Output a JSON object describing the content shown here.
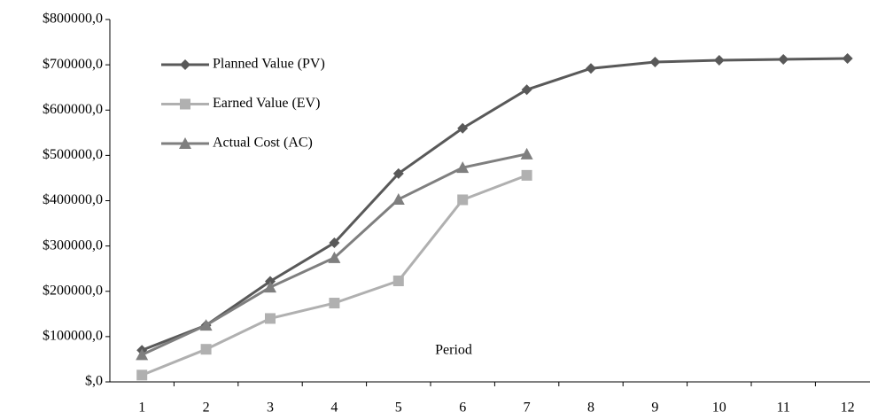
{
  "chart_data": {
    "type": "line",
    "categories": [
      "1",
      "2",
      "3",
      "4",
      "5",
      "6",
      "7",
      "8",
      "9",
      "10",
      "11",
      "12"
    ],
    "series": [
      {
        "name": "Planned Value (PV)",
        "color": "#595959",
        "marker": "diamond",
        "values": [
          70000,
          125000,
          222000,
          307000,
          460000,
          560000,
          645000,
          692000,
          706000,
          710000,
          712000,
          714000
        ]
      },
      {
        "name": "Earned Value (EV)",
        "color": "#b0b0b0",
        "marker": "square",
        "values": [
          15000,
          72000,
          140000,
          174000,
          223000,
          402000,
          456000,
          null,
          null,
          null,
          null,
          null
        ]
      },
      {
        "name": "Actual Cost (AC)",
        "color": "#7f7f7f",
        "marker": "triangle",
        "values": [
          60000,
          125000,
          209000,
          274000,
          403000,
          473000,
          503000,
          null,
          null,
          null,
          null,
          null
        ]
      }
    ],
    "annotations": [
      "Period"
    ],
    "ylim": [
      0,
      800000
    ],
    "yticks": [
      {
        "value": 0,
        "label": "$,0"
      },
      {
        "value": 100000,
        "label": "$100000,0"
      },
      {
        "value": 200000,
        "label": "$200000,0"
      },
      {
        "value": 300000,
        "label": "$300000,0"
      },
      {
        "value": 400000,
        "label": "$400000,0"
      },
      {
        "value": 500000,
        "label": "$500000,0"
      },
      {
        "value": 600000,
        "label": "$600000,0"
      },
      {
        "value": 700000,
        "label": "$700000,0"
      },
      {
        "value": 800000,
        "label": "$800000,0"
      }
    ],
    "grid": false,
    "legend": "top-left"
  }
}
